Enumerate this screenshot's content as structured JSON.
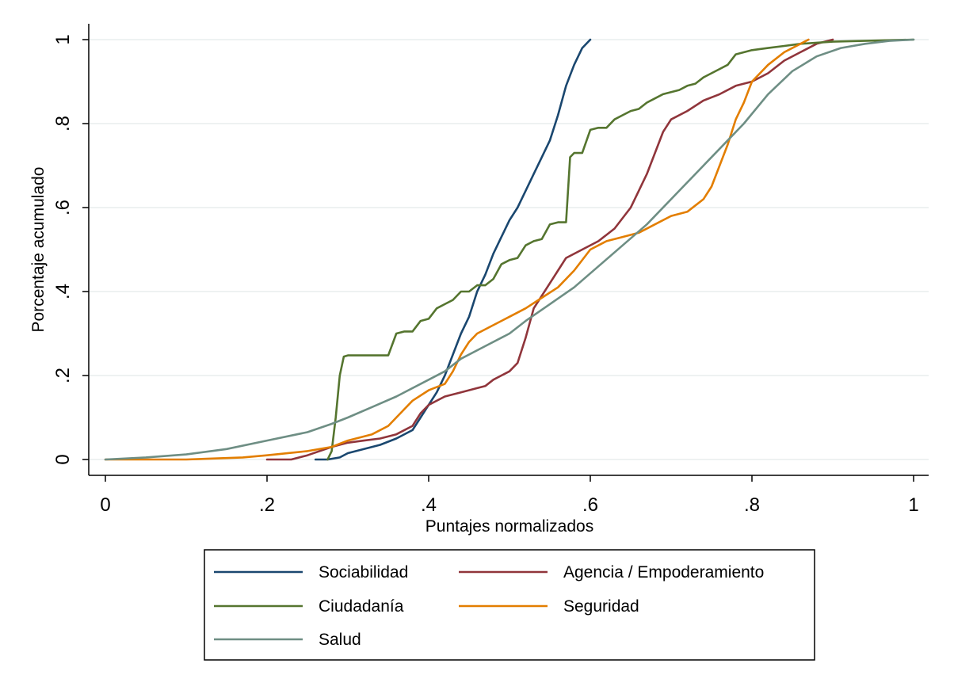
{
  "chart_data": {
    "type": "line",
    "title": "",
    "xlabel": "Puntajes normalizados",
    "ylabel": "Porcentaje acumulado",
    "xlim": [
      0,
      1
    ],
    "ylim": [
      0,
      1
    ],
    "x_ticks": [
      {
        "value": 0,
        "label": "0"
      },
      {
        "value": 0.2,
        "label": ".2"
      },
      {
        "value": 0.4,
        "label": ".4"
      },
      {
        "value": 0.6,
        "label": ".6"
      },
      {
        "value": 0.8,
        "label": ".8"
      },
      {
        "value": 1,
        "label": "1"
      }
    ],
    "y_ticks": [
      {
        "value": 0,
        "label": "0"
      },
      {
        "value": 0.2,
        "label": ".2"
      },
      {
        "value": 0.4,
        "label": ".4"
      },
      {
        "value": 0.6,
        "label": ".6"
      },
      {
        "value": 0.8,
        "label": ".8"
      },
      {
        "value": 1,
        "label": "1"
      }
    ],
    "grid": "horizontal",
    "legend_position": "bottom",
    "series": [
      {
        "name": "Sociabilidad",
        "color": "#1a476f",
        "points": [
          [
            0.26,
            0
          ],
          [
            0.275,
            0
          ],
          [
            0.29,
            0.005
          ],
          [
            0.3,
            0.015
          ],
          [
            0.32,
            0.025
          ],
          [
            0.34,
            0.035
          ],
          [
            0.36,
            0.05
          ],
          [
            0.38,
            0.07
          ],
          [
            0.39,
            0.1
          ],
          [
            0.4,
            0.13
          ],
          [
            0.41,
            0.16
          ],
          [
            0.42,
            0.2
          ],
          [
            0.43,
            0.25
          ],
          [
            0.44,
            0.3
          ],
          [
            0.45,
            0.34
          ],
          [
            0.46,
            0.4
          ],
          [
            0.47,
            0.44
          ],
          [
            0.48,
            0.49
          ],
          [
            0.49,
            0.53
          ],
          [
            0.5,
            0.57
          ],
          [
            0.51,
            0.6
          ],
          [
            0.52,
            0.64
          ],
          [
            0.53,
            0.68
          ],
          [
            0.54,
            0.72
          ],
          [
            0.55,
            0.76
          ],
          [
            0.56,
            0.82
          ],
          [
            0.57,
            0.89
          ],
          [
            0.58,
            0.94
          ],
          [
            0.59,
            0.98
          ],
          [
            0.6,
            1
          ]
        ]
      },
      {
        "name": "Agencia / Empoderamiento",
        "color": "#90353b",
        "points": [
          [
            0.2,
            0
          ],
          [
            0.23,
            0
          ],
          [
            0.25,
            0.01
          ],
          [
            0.28,
            0.03
          ],
          [
            0.3,
            0.04
          ],
          [
            0.32,
            0.045
          ],
          [
            0.34,
            0.05
          ],
          [
            0.36,
            0.06
          ],
          [
            0.38,
            0.08
          ],
          [
            0.39,
            0.11
          ],
          [
            0.4,
            0.13
          ],
          [
            0.42,
            0.15
          ],
          [
            0.44,
            0.16
          ],
          [
            0.46,
            0.17
          ],
          [
            0.47,
            0.175
          ],
          [
            0.48,
            0.19
          ],
          [
            0.5,
            0.21
          ],
          [
            0.51,
            0.23
          ],
          [
            0.52,
            0.29
          ],
          [
            0.53,
            0.36
          ],
          [
            0.54,
            0.39
          ],
          [
            0.55,
            0.42
          ],
          [
            0.56,
            0.45
          ],
          [
            0.57,
            0.48
          ],
          [
            0.59,
            0.5
          ],
          [
            0.61,
            0.52
          ],
          [
            0.63,
            0.55
          ],
          [
            0.65,
            0.6
          ],
          [
            0.66,
            0.64
          ],
          [
            0.67,
            0.68
          ],
          [
            0.68,
            0.73
          ],
          [
            0.69,
            0.78
          ],
          [
            0.7,
            0.81
          ],
          [
            0.72,
            0.83
          ],
          [
            0.74,
            0.855
          ],
          [
            0.76,
            0.87
          ],
          [
            0.78,
            0.89
          ],
          [
            0.8,
            0.9
          ],
          [
            0.82,
            0.92
          ],
          [
            0.84,
            0.95
          ],
          [
            0.86,
            0.97
          ],
          [
            0.88,
            0.99
          ],
          [
            0.9,
            1
          ]
        ]
      },
      {
        "name": "Ciudadanía",
        "color": "#55752f",
        "points": [
          [
            0.275,
            0
          ],
          [
            0.28,
            0.02
          ],
          [
            0.285,
            0.1
          ],
          [
            0.29,
            0.2
          ],
          [
            0.295,
            0.245
          ],
          [
            0.3,
            0.248
          ],
          [
            0.35,
            0.248
          ],
          [
            0.36,
            0.3
          ],
          [
            0.37,
            0.305
          ],
          [
            0.38,
            0.305
          ],
          [
            0.39,
            0.33
          ],
          [
            0.4,
            0.335
          ],
          [
            0.41,
            0.36
          ],
          [
            0.42,
            0.37
          ],
          [
            0.43,
            0.38
          ],
          [
            0.44,
            0.4
          ],
          [
            0.45,
            0.4
          ],
          [
            0.46,
            0.415
          ],
          [
            0.47,
            0.415
          ],
          [
            0.48,
            0.43
          ],
          [
            0.49,
            0.465
          ],
          [
            0.5,
            0.475
          ],
          [
            0.51,
            0.48
          ],
          [
            0.52,
            0.51
          ],
          [
            0.53,
            0.52
          ],
          [
            0.54,
            0.525
          ],
          [
            0.55,
            0.56
          ],
          [
            0.56,
            0.565
          ],
          [
            0.57,
            0.565
          ],
          [
            0.575,
            0.72
          ],
          [
            0.58,
            0.73
          ],
          [
            0.59,
            0.73
          ],
          [
            0.6,
            0.785
          ],
          [
            0.61,
            0.79
          ],
          [
            0.62,
            0.79
          ],
          [
            0.63,
            0.81
          ],
          [
            0.64,
            0.82
          ],
          [
            0.65,
            0.83
          ],
          [
            0.66,
            0.835
          ],
          [
            0.67,
            0.85
          ],
          [
            0.68,
            0.86
          ],
          [
            0.69,
            0.87
          ],
          [
            0.7,
            0.875
          ],
          [
            0.71,
            0.88
          ],
          [
            0.72,
            0.89
          ],
          [
            0.73,
            0.895
          ],
          [
            0.74,
            0.91
          ],
          [
            0.76,
            0.93
          ],
          [
            0.77,
            0.94
          ],
          [
            0.78,
            0.965
          ],
          [
            0.8,
            0.975
          ],
          [
            0.82,
            0.98
          ],
          [
            0.84,
            0.985
          ],
          [
            0.86,
            0.99
          ],
          [
            0.9,
            0.995
          ],
          [
            1,
            1
          ]
        ]
      },
      {
        "name": "Seguridad",
        "color": "#e37e00",
        "points": [
          [
            0,
            0
          ],
          [
            0.1,
            0
          ],
          [
            0.17,
            0.005
          ],
          [
            0.2,
            0.01
          ],
          [
            0.25,
            0.02
          ],
          [
            0.28,
            0.03
          ],
          [
            0.3,
            0.045
          ],
          [
            0.33,
            0.06
          ],
          [
            0.35,
            0.08
          ],
          [
            0.36,
            0.1
          ],
          [
            0.38,
            0.14
          ],
          [
            0.4,
            0.165
          ],
          [
            0.42,
            0.18
          ],
          [
            0.43,
            0.21
          ],
          [
            0.44,
            0.25
          ],
          [
            0.45,
            0.28
          ],
          [
            0.46,
            0.3
          ],
          [
            0.48,
            0.32
          ],
          [
            0.5,
            0.34
          ],
          [
            0.52,
            0.36
          ],
          [
            0.54,
            0.385
          ],
          [
            0.56,
            0.41
          ],
          [
            0.58,
            0.45
          ],
          [
            0.6,
            0.5
          ],
          [
            0.62,
            0.52
          ],
          [
            0.64,
            0.53
          ],
          [
            0.66,
            0.54
          ],
          [
            0.68,
            0.56
          ],
          [
            0.7,
            0.58
          ],
          [
            0.72,
            0.59
          ],
          [
            0.74,
            0.62
          ],
          [
            0.75,
            0.65
          ],
          [
            0.76,
            0.7
          ],
          [
            0.77,
            0.75
          ],
          [
            0.78,
            0.81
          ],
          [
            0.79,
            0.85
          ],
          [
            0.8,
            0.9
          ],
          [
            0.82,
            0.94
          ],
          [
            0.84,
            0.97
          ],
          [
            0.86,
            0.99
          ],
          [
            0.87,
            1
          ]
        ]
      },
      {
        "name": "Salud",
        "color": "#6e8e84",
        "points": [
          [
            0,
            0
          ],
          [
            0.05,
            0.005
          ],
          [
            0.1,
            0.012
          ],
          [
            0.15,
            0.025
          ],
          [
            0.2,
            0.045
          ],
          [
            0.25,
            0.065
          ],
          [
            0.28,
            0.085
          ],
          [
            0.3,
            0.1
          ],
          [
            0.33,
            0.125
          ],
          [
            0.36,
            0.15
          ],
          [
            0.4,
            0.19
          ],
          [
            0.42,
            0.21
          ],
          [
            0.44,
            0.24
          ],
          [
            0.47,
            0.27
          ],
          [
            0.5,
            0.3
          ],
          [
            0.52,
            0.33
          ],
          [
            0.55,
            0.37
          ],
          [
            0.58,
            0.41
          ],
          [
            0.61,
            0.46
          ],
          [
            0.64,
            0.51
          ],
          [
            0.67,
            0.56
          ],
          [
            0.7,
            0.62
          ],
          [
            0.73,
            0.68
          ],
          [
            0.76,
            0.74
          ],
          [
            0.79,
            0.8
          ],
          [
            0.82,
            0.87
          ],
          [
            0.85,
            0.925
          ],
          [
            0.88,
            0.96
          ],
          [
            0.91,
            0.98
          ],
          [
            0.94,
            0.99
          ],
          [
            0.97,
            0.997
          ],
          [
            1,
            1
          ]
        ]
      }
    ]
  }
}
